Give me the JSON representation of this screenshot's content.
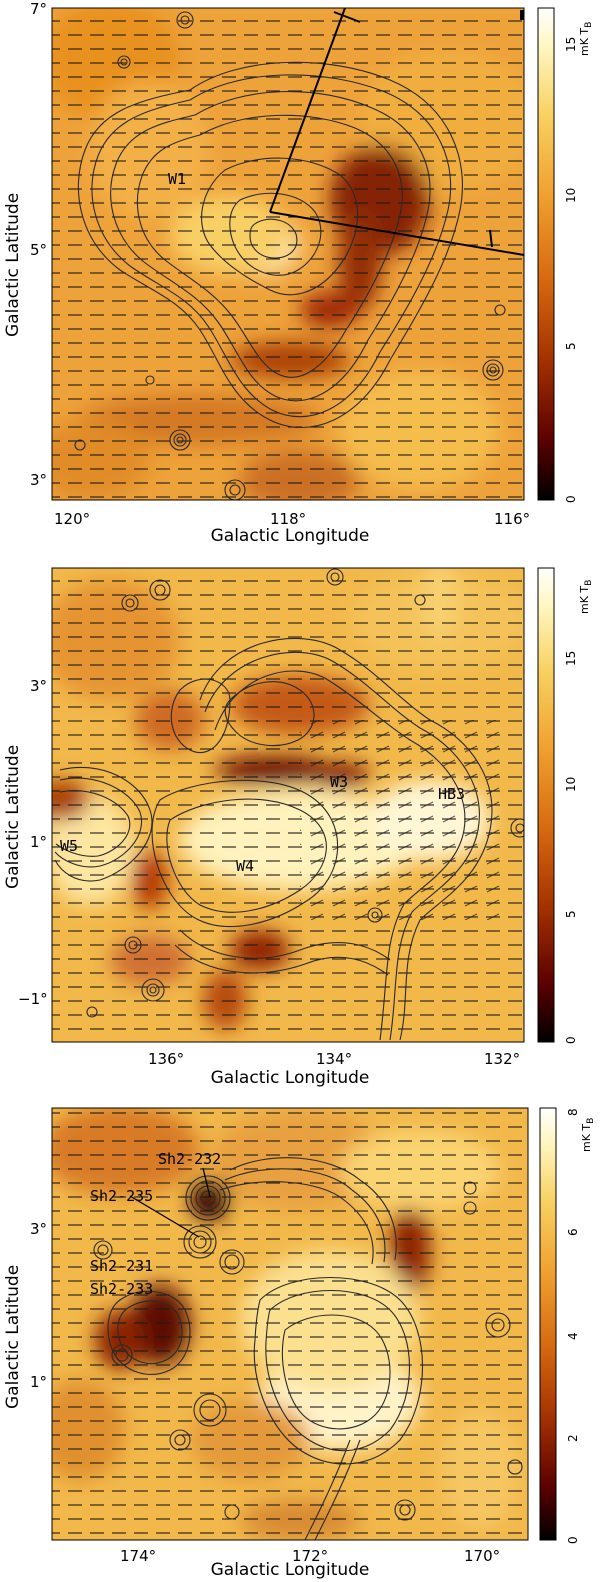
{
  "panels": [
    {
      "x_ticks": [
        "120°",
        "118°",
        "116°"
      ],
      "y_ticks": [
        "7°",
        "5°",
        "3°"
      ],
      "xlabel": "Galactic Longitude",
      "ylabel": "Galactic Latitude",
      "cbar_ticks": [
        "0",
        "5",
        "10",
        "15"
      ],
      "cbar_unit": "mK T",
      "cbar_unit_sub": "B",
      "labels": [
        "W1"
      ],
      "colormap": [
        "#000000",
        "#5a0000",
        "#a23000",
        "#d66a10",
        "#f0a030",
        "#f8d060",
        "#fff6c0",
        "#ffffff"
      ]
    },
    {
      "x_ticks": [
        "136°",
        "134°",
        "132°"
      ],
      "y_ticks": [
        "3°",
        "1°",
        "−1°"
      ],
      "xlabel": "Galactic Longitude",
      "ylabel": "Galactic Latitude",
      "cbar_ticks": [
        "0",
        "5",
        "10",
        "15"
      ],
      "cbar_unit": "mK T",
      "cbar_unit_sub": "B",
      "labels": [
        "W3",
        "HB3",
        "W5",
        "W4"
      ]
    },
    {
      "x_ticks": [
        "174°",
        "172°",
        "170°"
      ],
      "y_ticks": [
        "3°",
        "1°"
      ],
      "xlabel": "Galactic Longitude",
      "ylabel": "Galactic Latitude",
      "cbar_ticks": [
        "0",
        "2",
        "4",
        "6",
        "8"
      ],
      "cbar_unit": "mK T",
      "cbar_unit_sub": "B",
      "labels": [
        "Sh2-232",
        "Sh2-235",
        "Sh2-231",
        "Sh2-233"
      ]
    }
  ]
}
